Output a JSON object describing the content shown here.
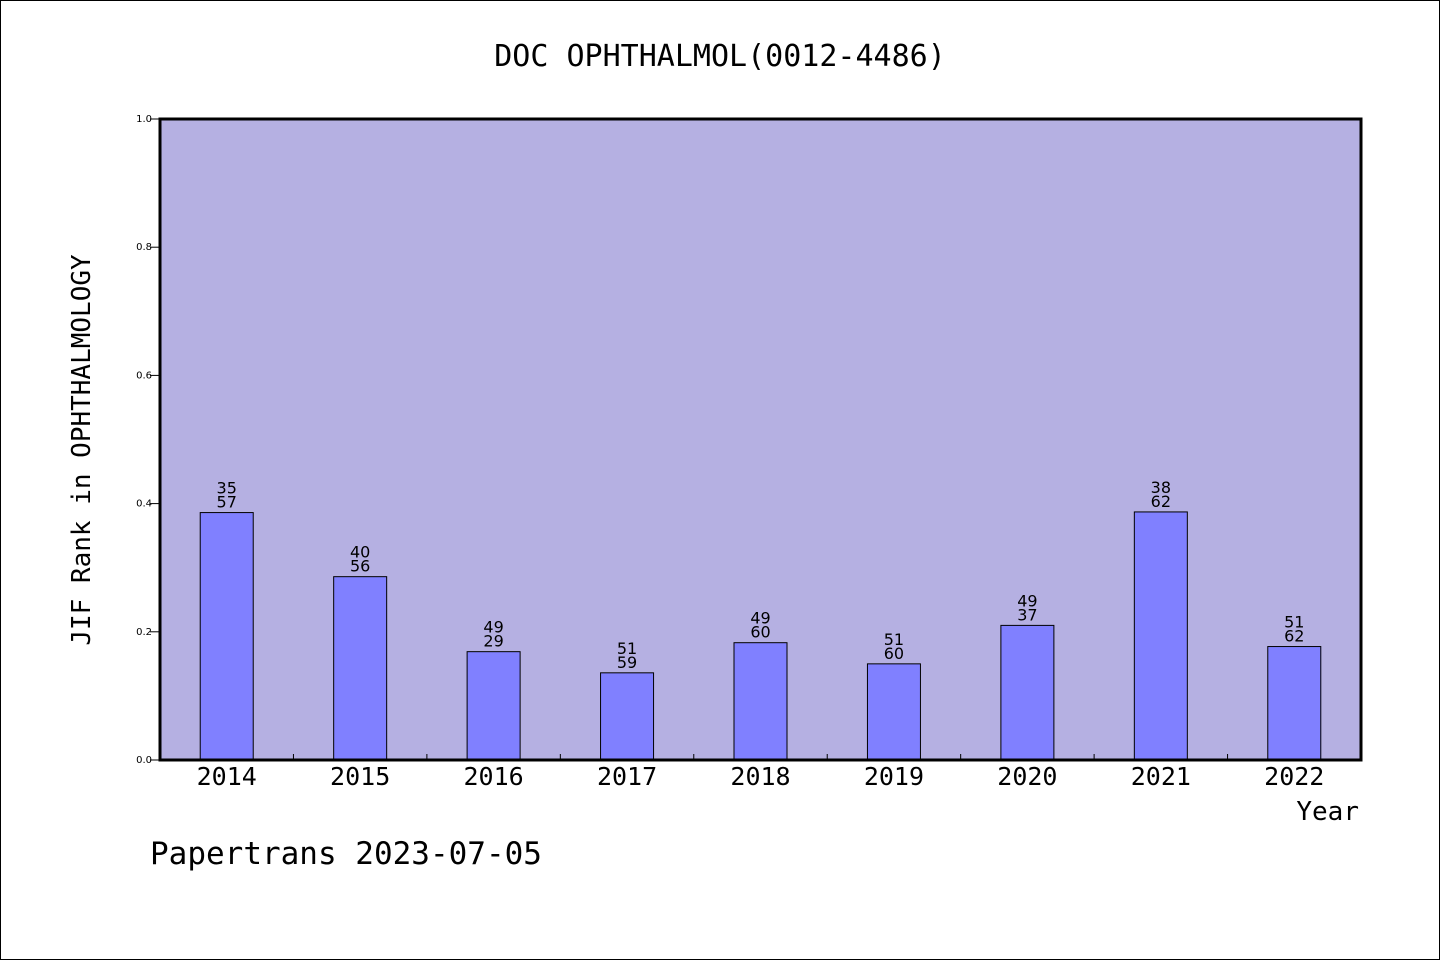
{
  "chart_data": {
    "type": "bar",
    "title": "DOC OPHTHALMOL(0012-4486)",
    "xlabel": "Year",
    "ylabel": "JIF Rank in OPHTHALMOLOGY",
    "ylim": [
      0,
      1.0
    ],
    "yticks": [
      "0.0",
      "0.2",
      "0.4",
      "0.6",
      "0.8",
      "1.0"
    ],
    "grid": false,
    "categories": [
      "2014",
      "2015",
      "2016",
      "2017",
      "2018",
      "2019",
      "2020",
      "2021",
      "2022"
    ],
    "values": [
      0.386,
      0.286,
      0.169,
      0.136,
      0.183,
      0.15,
      0.21,
      0.387,
      0.177
    ],
    "labels": [
      [
        "35",
        "57"
      ],
      [
        "40",
        "56"
      ],
      [
        "49",
        "29"
      ],
      [
        "51",
        "59"
      ],
      [
        "49",
        "60"
      ],
      [
        "51",
        "60"
      ],
      [
        "49",
        "37"
      ],
      [
        "38",
        "62"
      ],
      [
        "51",
        "62"
      ]
    ],
    "colors": {
      "plot_background": "#b5b0e2",
      "bar_fill": "#8080ff",
      "bar_stroke": "#000000"
    }
  },
  "footer": "Papertrans 2023-07-05"
}
